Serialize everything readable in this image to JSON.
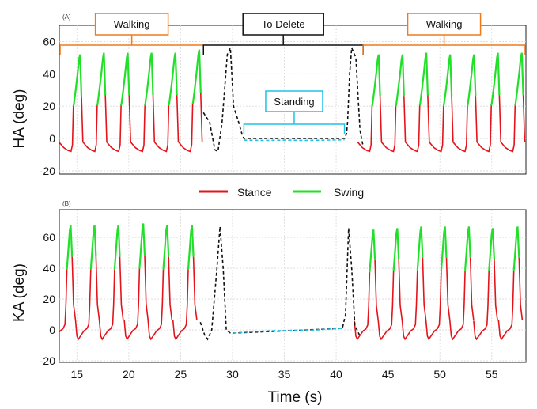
{
  "chart_data": [
    {
      "type": "line",
      "panel_label": "(A)",
      "ylabel": "HA (deg)",
      "xlabel": "",
      "xlim": [
        13.3,
        58.3
      ],
      "ylim": [
        -22,
        70
      ],
      "xticks": [
        15,
        20,
        25,
        30,
        35,
        40,
        45,
        50,
        55
      ],
      "yticks": [
        -20,
        0,
        20,
        40,
        60
      ],
      "ytick_labels": [
        "-20",
        "0",
        "20",
        "40",
        "60"
      ],
      "grid": true,
      "series": [
        {
          "name": "Stance",
          "color": "#e4141b",
          "gait": "stance",
          "peaks_x": [
            14.7,
            17.0,
            19.3,
            21.6,
            23.9,
            26.2,
            43.5,
            45.8,
            48.1,
            50.4,
            52.7,
            55.0,
            57.3
          ],
          "peak_value": 22,
          "trough_value": -8
        },
        {
          "name": "Swing",
          "color": "#22e02a",
          "gait": "swing",
          "peak_times": [
            15.3,
            17.6,
            19.9,
            22.2,
            24.5,
            26.8,
            44.1,
            46.4,
            48.7,
            51.0,
            53.3,
            55.6,
            57.9
          ],
          "peak_values": [
            52,
            53,
            53,
            53,
            53,
            55,
            52,
            52,
            53,
            52,
            52,
            53,
            53
          ]
        },
        {
          "name": "To Delete",
          "color": "#111111",
          "style": "dashed",
          "points": [
            [
              27.2,
              16
            ],
            [
              27.8,
              10
            ],
            [
              28.3,
              -7
            ],
            [
              28.6,
              -8
            ],
            [
              29.0,
              10
            ],
            [
              29.5,
              52
            ],
            [
              29.8,
              56
            ],
            [
              30.1,
              20
            ],
            [
              30.6,
              10
            ],
            [
              30.9,
              3
            ],
            [
              31.1,
              0
            ],
            [
              40.8,
              0
            ],
            [
              41.0,
              3
            ],
            [
              41.1,
              10
            ],
            [
              41.3,
              40
            ],
            [
              41.5,
              56
            ],
            [
              41.9,
              50
            ],
            [
              42.3,
              5
            ],
            [
              42.6,
              -5
            ]
          ]
        },
        {
          "name": "Standing",
          "color": "#20c0e8",
          "style": "dashed",
          "points": [
            [
              31.1,
              -1
            ],
            [
              33.0,
              -1.2
            ],
            [
              35.0,
              -1
            ],
            [
              37.0,
              -1.2
            ],
            [
              39.0,
              -1
            ],
            [
              40.8,
              -0.8
            ]
          ]
        }
      ],
      "annotations": [
        {
          "label": "Walking",
          "x_start": 13.3,
          "x_end": 27.2,
          "color": "#f07a1a",
          "y": 56
        },
        {
          "label": "To Delete",
          "x_start": 27.2,
          "x_end": 42.6,
          "color": "#111111",
          "y": 56
        },
        {
          "label": "Walking",
          "x_start": 42.6,
          "x_end": 58.3,
          "color": "#f07a1a",
          "y": 56
        },
        {
          "label": "Standing",
          "x_start": 31.1,
          "x_end": 40.8,
          "color": "#20c0e8",
          "y": 4
        }
      ]
    },
    {
      "type": "line",
      "panel_label": "(B)",
      "ylabel": "KA (deg)",
      "xlabel": "Time (s)",
      "xlim": [
        13.3,
        58.3
      ],
      "ylim": [
        -21,
        78
      ],
      "xticks": [
        15,
        20,
        25,
        30,
        35,
        40,
        45,
        50,
        55
      ],
      "xtick_labels": [
        "15",
        "20",
        "25",
        "30",
        "35",
        "40",
        "45",
        "50",
        "55"
      ],
      "yticks": [
        -20,
        0,
        20,
        40,
        60
      ],
      "ytick_labels": [
        "-20",
        "0",
        "20",
        "40",
        "60"
      ],
      "grid": true,
      "series": [
        {
          "name": "Stance",
          "color": "#e4141b",
          "gait": "stance",
          "trough_value": -6
        },
        {
          "name": "Swing",
          "color": "#22e02a",
          "gait": "swing",
          "peak_times": [
            14.4,
            16.7,
            19.0,
            21.4,
            23.7,
            26.1,
            43.6,
            45.9,
            48.2,
            50.5,
            52.8,
            55.1,
            57.5
          ],
          "peak_values": [
            68,
            68,
            68,
            69,
            68,
            68,
            65,
            66,
            67,
            67,
            67,
            66,
            67
          ]
        },
        {
          "name": "To Delete",
          "color": "#111111",
          "style": "dashed",
          "points": [
            [
              26.9,
              5
            ],
            [
              27.3,
              -3
            ],
            [
              27.6,
              -6
            ],
            [
              28.0,
              0
            ],
            [
              28.5,
              40
            ],
            [
              28.8,
              67
            ],
            [
              29.1,
              40
            ],
            [
              29.4,
              0
            ],
            [
              29.8,
              -2
            ],
            [
              30.1,
              -2
            ],
            [
              40.6,
              1
            ],
            [
              40.9,
              10
            ],
            [
              41.2,
              66
            ],
            [
              41.5,
              40
            ],
            [
              41.8,
              3
            ],
            [
              42.3,
              -4
            ]
          ]
        },
        {
          "name": "Standing",
          "color": "#20c0e8",
          "style": "dashed",
          "points": [
            [
              30.1,
              -2
            ],
            [
              32.0,
              -1
            ],
            [
              34.0,
              -0.5
            ],
            [
              36.0,
              -0.3
            ],
            [
              38.0,
              0
            ],
            [
              40.6,
              1
            ]
          ]
        }
      ]
    }
  ],
  "legend": {
    "items": [
      {
        "label": "Stance",
        "color": "#e4141b"
      },
      {
        "label": "Swing",
        "color": "#22e02a"
      }
    ]
  }
}
